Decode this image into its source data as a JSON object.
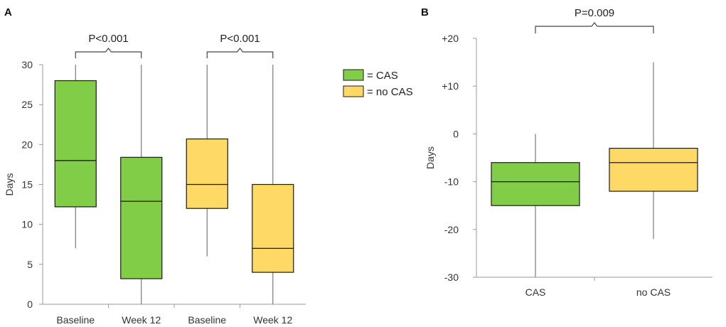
{
  "colors": {
    "cas": "#82cd47",
    "no_cas": "#ffd966"
  },
  "legend": [
    {
      "label": "= CAS",
      "color": "#82cd47"
    },
    {
      "label": "= no CAS",
      "color": "#ffd966"
    }
  ],
  "chart_data": [
    {
      "type": "box",
      "panel": "A",
      "ylabel": "Days",
      "xlabel": "",
      "ylim": [
        0,
        30
      ],
      "yticks": [
        "0",
        "5",
        "10",
        "15",
        "20",
        "25",
        "30"
      ],
      "categories": [
        "Baseline",
        "Week 12",
        "Baseline",
        "Week 12"
      ],
      "boxes": [
        {
          "label": "Baseline",
          "group": "CAS",
          "min": 7,
          "q1": 12.2,
          "median": 18,
          "q3": 28,
          "max": 30
        },
        {
          "label": "Week 12",
          "group": "CAS",
          "min": 0,
          "q1": 3.2,
          "median": 12.9,
          "q3": 18.4,
          "max": 30
        },
        {
          "label": "Baseline",
          "group": "no CAS",
          "min": 6,
          "q1": 12,
          "median": 15,
          "q3": 20.7,
          "max": 30
        },
        {
          "label": "Week 12",
          "group": "no CAS",
          "min": 0,
          "q1": 4,
          "median": 7,
          "q3": 15,
          "max": 30
        }
      ],
      "annotations": [
        {
          "text": "P<0.001",
          "between": [
            0,
            1
          ]
        },
        {
          "text": "P<0.001",
          "between": [
            2,
            3
          ]
        }
      ]
    },
    {
      "type": "box",
      "panel": "B",
      "ylabel": "Days",
      "xlabel": "",
      "ylim": [
        -30,
        20
      ],
      "yticks": [
        "-30",
        "-20",
        "-10",
        "0",
        "+10",
        "+20"
      ],
      "categories": [
        "CAS",
        "no CAS"
      ],
      "boxes": [
        {
          "label": "CAS",
          "group": "CAS",
          "min": -30,
          "q1": -15,
          "median": -10,
          "q3": -6,
          "max": 0
        },
        {
          "label": "no CAS",
          "group": "no CAS",
          "min": -22,
          "q1": -12,
          "median": -6,
          "q3": -3,
          "max": 15
        }
      ],
      "annotations": [
        {
          "text": "P=0.009",
          "between": [
            0,
            1
          ]
        }
      ]
    }
  ]
}
